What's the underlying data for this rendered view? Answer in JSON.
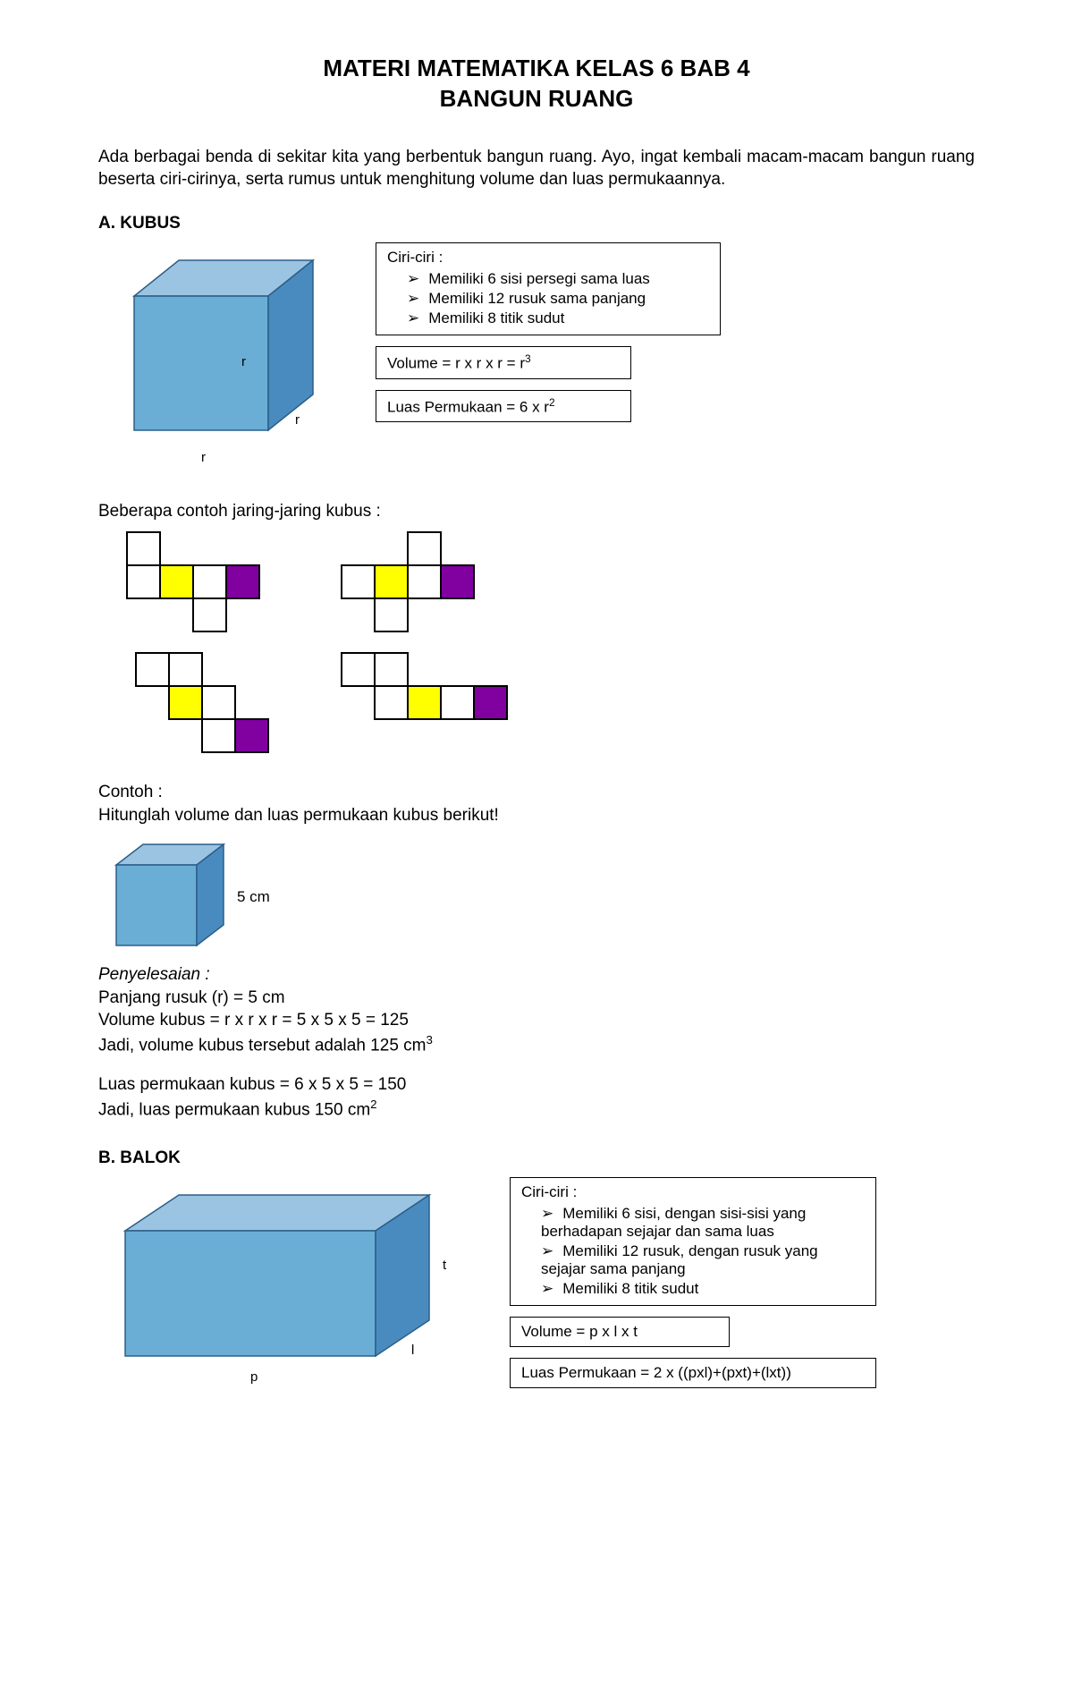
{
  "title_line1": "MATERI MATEMATIKA KELAS 6 BAB 4",
  "title_line2": "BANGUN RUANG",
  "intro": "Ada berbagai benda di sekitar kita yang berbentuk bangun ruang. Ayo, ingat kembali macam-macam bangun ruang beserta ciri-cirinya, serta rumus untuk menghitung volume dan luas permukaannya.",
  "kubus": {
    "heading": "A.  KUBUS",
    "ciri_title": "Ciri-ciri :",
    "ciri": [
      "Memiliki 6 sisi persegi sama luas",
      "Memiliki 12 rusuk sama panjang",
      "Memiliki 8 titik sudut"
    ],
    "volume": "Volume = r x r x r = r",
    "volume_sup": "3",
    "luas": "Luas Permukaan = 6 x r",
    "luas_sup": "2",
    "labels": {
      "r": "r"
    },
    "cube_colors": {
      "top": "#9bc4e2",
      "front": "#6aaed6",
      "side": "#4a8bbf",
      "stroke": "#2a5e88"
    }
  },
  "jaring_text": "Beberapa contoh jaring-jaring kubus :",
  "nets": {
    "cell": 37,
    "yellow": "#ffff00",
    "purple": "#8000a0",
    "white": "#ffffff",
    "stroke": "#000000",
    "n1": [
      [
        0,
        0,
        "w"
      ],
      [
        0,
        1,
        "w"
      ],
      [
        1,
        1,
        "y"
      ],
      [
        2,
        1,
        "w"
      ],
      [
        3,
        1,
        "p"
      ],
      [
        2,
        2,
        "w"
      ]
    ],
    "n2": [
      [
        2,
        0,
        "w"
      ],
      [
        0,
        1,
        "w"
      ],
      [
        1,
        1,
        "y"
      ],
      [
        2,
        1,
        "w"
      ],
      [
        3,
        1,
        "p"
      ],
      [
        1,
        2,
        "w"
      ]
    ],
    "n3": [
      [
        0,
        0,
        "w"
      ],
      [
        1,
        0,
        "w"
      ],
      [
        1,
        1,
        "y"
      ],
      [
        2,
        1,
        "w"
      ],
      [
        2,
        2,
        "w"
      ],
      [
        3,
        2,
        "p"
      ]
    ],
    "n4": [
      [
        0,
        0,
        "w"
      ],
      [
        1,
        0,
        "w"
      ],
      [
        1,
        1,
        "w"
      ],
      [
        2,
        1,
        "y"
      ],
      [
        3,
        1,
        "w"
      ],
      [
        4,
        1,
        "p"
      ]
    ]
  },
  "contoh": {
    "h": "Contoh :",
    "q": "Hitunglah volume dan luas permukaan kubus berikut!",
    "dim": "5 cm",
    "peny": "Penyelesaian :",
    "l1": "Panjang rusuk (r) = 5 cm",
    "l2": "Volume kubus = r x r x r = 5 x 5 x 5 = 125",
    "l3a": "Jadi, volume kubus tersebut adalah 125 cm",
    "l3sup": "3",
    "l4": "Luas permukaan kubus = 6 x 5 x 5 = 150",
    "l5a": "Jadi, luas permukaan kubus 150 cm",
    "l5sup": "2"
  },
  "balok": {
    "heading": "B.  BALOK",
    "ciri_title": "Ciri-ciri :",
    "ciri": [
      "Memiliki 6 sisi, dengan sisi-sisi yang berhadapan sejajar dan sama luas",
      "Memiliki 12 rusuk, dengan rusuk yang sejajar sama panjang",
      "Memiliki 8 titik sudut"
    ],
    "volume": "Volume = p x l x t",
    "luas": "Luas Permukaan = 2 x ((pxl)+(pxt)+(lxt))",
    "labels": {
      "p": "p",
      "l": "l",
      "t": "t"
    }
  }
}
